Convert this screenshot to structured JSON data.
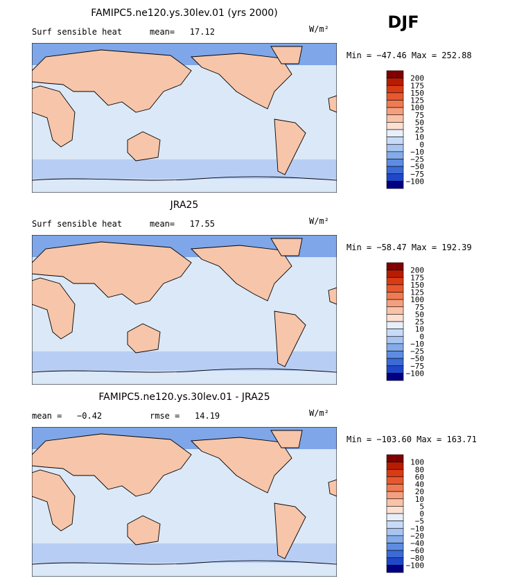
{
  "season": "DJF",
  "panels": [
    {
      "title": "FAMIPC5.ne120.ys.30lev.01 (yrs 2000)",
      "left_text": "Surf sensible heat",
      "center_text": "mean=   17.12",
      "units": "W/m²",
      "minmax": "Min = −47.46 Max = 252.88",
      "colorbar": {
        "labels": [
          "200",
          "175",
          "150",
          "125",
          "100",
          "75",
          "50",
          "25",
          "10",
          "0",
          "−10",
          "−25",
          "−50",
          "−75",
          "−100"
        ],
        "colors": [
          "#800000",
          "#b71c00",
          "#d93b14",
          "#e8582e",
          "#f07a52",
          "#f4a07e",
          "#f8c3a8",
          "#fbe0d0",
          "#e6effb",
          "#c8dbf6",
          "#a8c5f0",
          "#84abea",
          "#5e8ce2",
          "#3c6bd8",
          "#1f48c8",
          "#000080"
        ]
      }
    },
    {
      "title": "JRA25",
      "left_text": "Surf sensible heat",
      "center_text": "mean=   17.55",
      "units": "W/m²",
      "minmax": "Min = −58.47 Max = 192.39",
      "colorbar": {
        "labels": [
          "200",
          "175",
          "150",
          "125",
          "100",
          "75",
          "50",
          "25",
          "10",
          "0",
          "−10",
          "−25",
          "−50",
          "−75",
          "−100"
        ],
        "colors": [
          "#800000",
          "#b71c00",
          "#d93b14",
          "#e8582e",
          "#f07a52",
          "#f4a07e",
          "#f8c3a8",
          "#fbe0d0",
          "#e6effb",
          "#c8dbf6",
          "#a8c5f0",
          "#84abea",
          "#5e8ce2",
          "#3c6bd8",
          "#1f48c8",
          "#000080"
        ]
      }
    },
    {
      "title": "FAMIPC5.ne120.ys.30lev.01 - JRA25",
      "left_text": "mean =   −0.42",
      "center_text": "rmse =   14.19",
      "units": "W/m²",
      "minmax": "Min = −103.60 Max = 163.71",
      "colorbar": {
        "labels": [
          "100",
          "80",
          "60",
          "40",
          "20",
          "10",
          "5",
          "0",
          "−5",
          "−10",
          "−20",
          "−40",
          "−60",
          "−80",
          "−100"
        ],
        "colors": [
          "#800000",
          "#b71c00",
          "#d93b14",
          "#e8582e",
          "#f07a52",
          "#f4a07e",
          "#f8c3a8",
          "#fbe0d0",
          "#e6effb",
          "#c8dbf6",
          "#a8c5f0",
          "#84abea",
          "#5e8ce2",
          "#3c6bd8",
          "#1f48c8",
          "#000080"
        ]
      }
    }
  ]
}
